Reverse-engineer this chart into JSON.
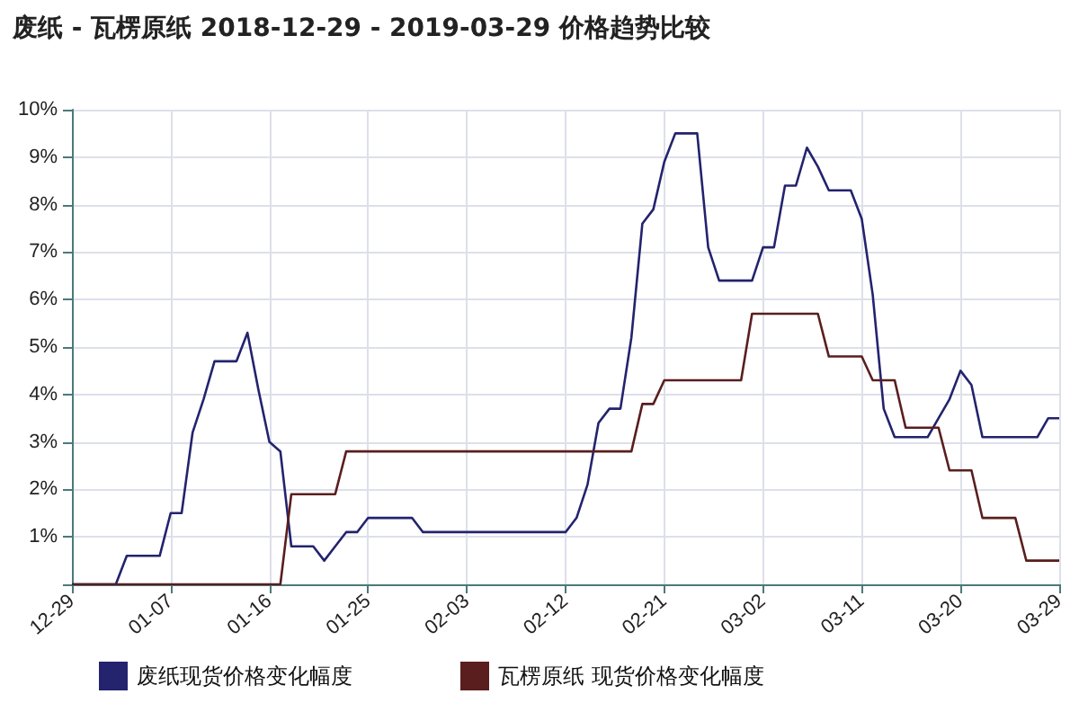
{
  "chart_data": {
    "type": "line",
    "title": "废纸 - 瓦楞原纸 2018-12-29 - 2019-03-29 价格趋势比较",
    "xlim": [
      "2018-12-29",
      "2019-03-29"
    ],
    "xticks": [
      {
        "value": "2018-12-29",
        "label": "12-29"
      },
      {
        "value": "2019-01-07",
        "label": "01-07"
      },
      {
        "value": "2019-01-16",
        "label": "01-16"
      },
      {
        "value": "2019-01-25",
        "label": "01-25"
      },
      {
        "value": "2019-02-03",
        "label": "02-03"
      },
      {
        "value": "2019-02-12",
        "label": "02-12"
      },
      {
        "value": "2019-02-21",
        "label": "02-21"
      },
      {
        "value": "2019-03-02",
        "label": "03-02"
      },
      {
        "value": "2019-03-11",
        "label": "03-11"
      },
      {
        "value": "2019-03-20",
        "label": "03-20"
      },
      {
        "value": "2019-03-29",
        "label": "03-29"
      }
    ],
    "ylim": [
      0,
      10
    ],
    "yticks": [
      {
        "value": 0,
        "label": null
      },
      {
        "value": 1,
        "label": "1%"
      },
      {
        "value": 2,
        "label": "2%"
      },
      {
        "value": 3,
        "label": "3%"
      },
      {
        "value": 4,
        "label": "4%"
      },
      {
        "value": 5,
        "label": "5%"
      },
      {
        "value": 6,
        "label": "6%"
      },
      {
        "value": 7,
        "label": "7%"
      },
      {
        "value": 8,
        "label": "8%"
      },
      {
        "value": 9,
        "label": "9%"
      },
      {
        "value": 10,
        "label": "10%"
      }
    ],
    "grid": true,
    "legend": "bottom",
    "marker": "none",
    "line_style": "solid",
    "series": [
      {
        "name": "废纸现货价格变化幅度",
        "color": "#23236e",
        "x": [
          "2018-12-29",
          "2019-01-02",
          "2019-01-03",
          "2019-01-06",
          "2019-01-07",
          "2019-01-08",
          "2019-01-09",
          "2019-01-10",
          "2019-01-11",
          "2019-01-13",
          "2019-01-14",
          "2019-01-15",
          "2019-01-16",
          "2019-01-17",
          "2019-01-18",
          "2019-01-20",
          "2019-01-21",
          "2019-01-22",
          "2019-01-23",
          "2019-01-24",
          "2019-01-25",
          "2019-01-29",
          "2019-01-30",
          "2019-02-12",
          "2019-02-13",
          "2019-02-14",
          "2019-02-15",
          "2019-02-16",
          "2019-02-17",
          "2019-02-18",
          "2019-02-19",
          "2019-02-20",
          "2019-02-21",
          "2019-02-22",
          "2019-02-24",
          "2019-02-25",
          "2019-02-26",
          "2019-03-01",
          "2019-03-02",
          "2019-03-03",
          "2019-03-04",
          "2019-03-05",
          "2019-03-06",
          "2019-03-07",
          "2019-03-08",
          "2019-03-10",
          "2019-03-11",
          "2019-03-12",
          "2019-03-13",
          "2019-03-14",
          "2019-03-17",
          "2019-03-18",
          "2019-03-19",
          "2019-03-20",
          "2019-03-21",
          "2019-03-22",
          "2019-03-27",
          "2019-03-28",
          "2019-03-29"
        ],
        "values": [
          0,
          0,
          0.6,
          0.6,
          1.5,
          1.5,
          3.2,
          3.9,
          4.7,
          4.7,
          5.3,
          4.1,
          3.0,
          2.8,
          0.8,
          0.8,
          0.5,
          0.8,
          1.1,
          1.1,
          1.4,
          1.4,
          1.1,
          1.1,
          1.4,
          2.1,
          3.4,
          3.7,
          3.7,
          5.2,
          7.6,
          7.9,
          8.9,
          9.5,
          9.5,
          7.1,
          6.4,
          6.4,
          7.1,
          7.1,
          8.4,
          8.4,
          9.2,
          8.8,
          8.3,
          8.3,
          7.7,
          6.1,
          3.7,
          3.1,
          3.1,
          3.5,
          3.9,
          4.5,
          4.2,
          3.1,
          3.1,
          3.5,
          3.5
        ]
      },
      {
        "name": "瓦楞原纸 现货价格变化幅度",
        "color": "#5a1e1e",
        "x": [
          "2018-12-29",
          "2019-01-17",
          "2019-01-18",
          "2019-01-22",
          "2019-01-23",
          "2019-02-18",
          "2019-02-19",
          "2019-02-20",
          "2019-02-21",
          "2019-02-28",
          "2019-03-01",
          "2019-03-07",
          "2019-03-08",
          "2019-03-11",
          "2019-03-12",
          "2019-03-14",
          "2019-03-15",
          "2019-03-18",
          "2019-03-19",
          "2019-03-21",
          "2019-03-22",
          "2019-03-25",
          "2019-03-26",
          "2019-03-29"
        ],
        "values": [
          0,
          0,
          1.9,
          1.9,
          2.8,
          2.8,
          3.8,
          3.8,
          4.3,
          4.3,
          5.7,
          5.7,
          4.8,
          4.8,
          4.3,
          4.3,
          3.3,
          3.3,
          2.4,
          2.4,
          1.4,
          1.4,
          0.5,
          0.5
        ]
      }
    ]
  }
}
